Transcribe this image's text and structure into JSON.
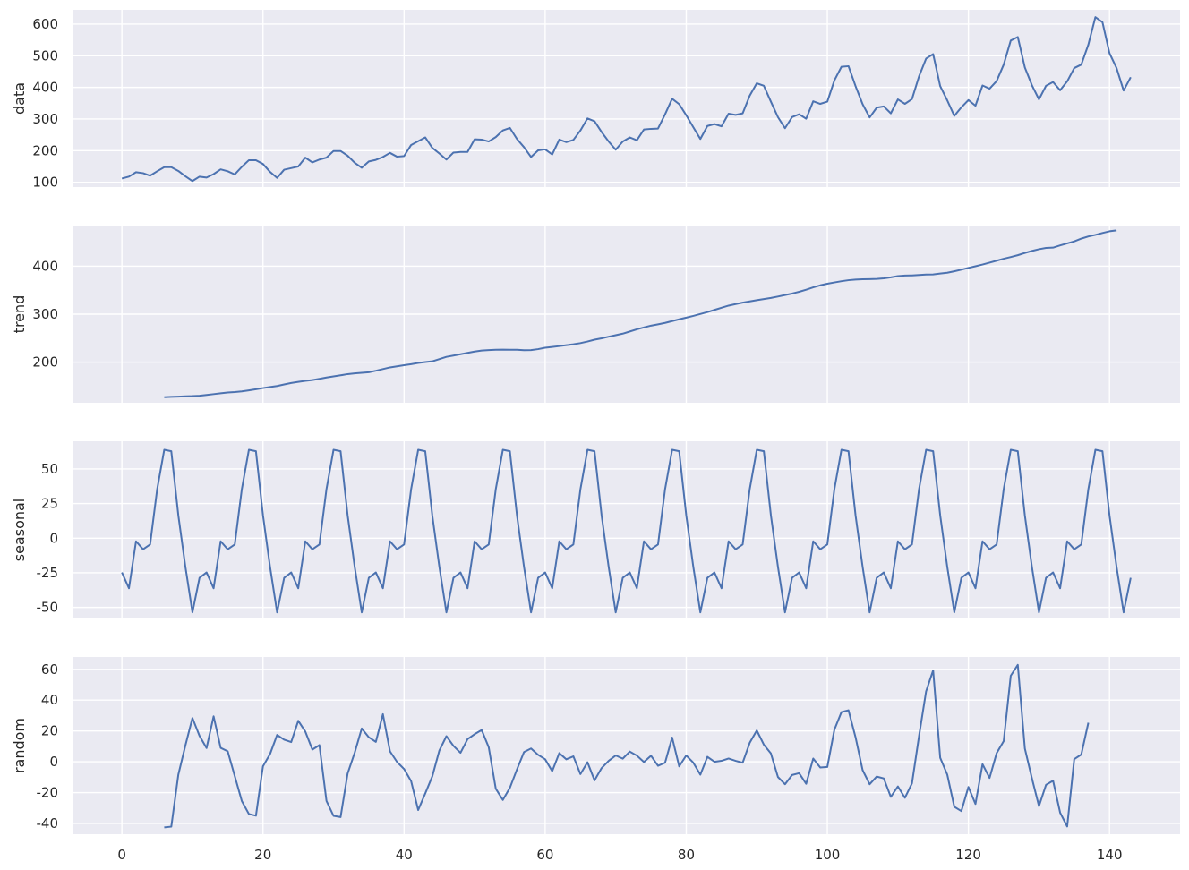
{
  "colors": {
    "panel_bg": "#EAEAF2",
    "grid": "#FFFFFF",
    "line": "#4C72B0",
    "text": "#262626"
  },
  "chart_data": [
    {
      "type": "line",
      "ylabel": "data",
      "ylim": [
        85,
        645
      ],
      "yticks": [
        100,
        200,
        300,
        400,
        500,
        600
      ],
      "xlim": [
        -7,
        150
      ],
      "xticks": [
        0,
        20,
        40,
        60,
        80,
        100,
        120,
        140
      ],
      "show_x_tick_labels": false,
      "x_start": 0,
      "values": [
        112,
        118,
        132,
        129,
        121,
        135,
        148,
        148,
        136,
        119,
        104,
        118,
        115,
        126,
        141,
        135,
        125,
        149,
        170,
        170,
        158,
        133,
        114,
        140,
        145,
        150,
        178,
        163,
        172,
        178,
        199,
        199,
        184,
        162,
        146,
        166,
        171,
        180,
        193,
        181,
        183,
        218,
        230,
        242,
        209,
        191,
        172,
        194,
        196,
        196,
        236,
        235,
        229,
        243,
        264,
        272,
        237,
        211,
        180,
        201,
        204,
        188,
        235,
        227,
        234,
        264,
        302,
        293,
        259,
        229,
        203,
        229,
        242,
        233,
        267,
        269,
        270,
        315,
        364,
        347,
        312,
        274,
        237,
        278,
        284,
        277,
        317,
        313,
        318,
        374,
        413,
        405,
        355,
        306,
        271,
        306,
        315,
        301,
        356,
        348,
        355,
        422,
        465,
        467,
        404,
        347,
        305,
        336,
        340,
        318,
        362,
        348,
        363,
        435,
        491,
        505,
        404,
        359,
        310,
        337,
        360,
        342,
        406,
        396,
        420,
        472,
        548,
        559,
        463,
        407,
        362,
        405,
        417,
        391,
        419,
        461,
        472,
        535,
        622,
        606,
        508,
        461,
        390,
        432
      ]
    },
    {
      "type": "line",
      "ylabel": "trend",
      "ylim": [
        115,
        485
      ],
      "yticks": [
        200,
        300,
        400
      ],
      "xlim": [
        -7,
        150
      ],
      "xticks": [
        0,
        20,
        40,
        60,
        80,
        100,
        120,
        140
      ],
      "show_x_tick_labels": false,
      "x_start": 6,
      "values": [
        126.8,
        127.3,
        127.9,
        128.6,
        129.0,
        129.8,
        131.3,
        133.1,
        134.9,
        136.4,
        137.4,
        138.8,
        140.9,
        143.2,
        145.7,
        148.0,
        150.0,
        153.3,
        156.3,
        158.6,
        160.8,
        162.5,
        165.0,
        167.8,
        170.2,
        172.4,
        174.9,
        176.4,
        177.7,
        178.8,
        181.9,
        185.4,
        188.9,
        191.2,
        193.4,
        195.6,
        198.1,
        200.0,
        201.6,
        206.3,
        210.9,
        213.6,
        216.3,
        219.2,
        221.9,
        224.0,
        225.0,
        225.6,
        226.0,
        225.6,
        225.6,
        224.8,
        225.1,
        227.0,
        230.0,
        231.5,
        233.3,
        235.3,
        237.1,
        239.6,
        242.9,
        246.7,
        249.5,
        252.9,
        256.1,
        259.3,
        263.8,
        268.4,
        272.3,
        276.0,
        278.8,
        281.8,
        285.5,
        289.3,
        292.8,
        296.4,
        300.3,
        304.3,
        308.9,
        313.4,
        317.8,
        321.0,
        324.0,
        326.6,
        329.2,
        331.6,
        333.9,
        336.8,
        339.9,
        343.0,
        346.7,
        351.1,
        355.9,
        360.2,
        363.5,
        366.2,
        368.8,
        370.9,
        372.2,
        372.9,
        373.1,
        373.6,
        374.7,
        376.8,
        379.4,
        380.6,
        380.9,
        381.8,
        382.7,
        383.0,
        384.7,
        386.5,
        389.5,
        392.9,
        396.6,
        400.0,
        403.6,
        407.6,
        411.7,
        415.7,
        419.3,
        423.1,
        427.8,
        432.0,
        435.6,
        438.3,
        438.9,
        443.5,
        447.7,
        452.0,
        457.7,
        462.2,
        465.5,
        469.5,
        473.0,
        475.0
      ]
    },
    {
      "type": "line",
      "ylabel": "seasonal",
      "ylim": [
        -58,
        70
      ],
      "yticks": [
        -50,
        -25,
        0,
        25,
        50
      ],
      "xlim": [
        -7,
        150
      ],
      "xticks": [
        0,
        20,
        40,
        60,
        80,
        100,
        120,
        140
      ],
      "show_x_tick_labels": false,
      "x_start": 0,
      "cycle": [
        -24.75,
        -36.19,
        -2.24,
        -8.04,
        -4.51,
        35.4,
        63.83,
        62.82,
        16.52,
        -20.64,
        -53.59,
        -28.62
      ],
      "repeats": 12
    },
    {
      "type": "line",
      "ylabel": "random",
      "ylim": [
        -47,
        68
      ],
      "yticks": [
        -40,
        -20,
        0,
        20,
        40,
        60
      ],
      "xlim": [
        -7,
        150
      ],
      "xticks": [
        0,
        20,
        40,
        60,
        80,
        100,
        120,
        140
      ],
      "x_tick_labels": [
        "0",
        "20",
        "40",
        "60",
        "80",
        "100",
        "120",
        "140"
      ],
      "show_x_tick_labels": true,
      "x_start": 6,
      "values": [
        -42.6,
        -42.1,
        -8.4,
        10.6,
        28.4,
        16.8,
        8.9,
        29.5,
        9.0,
        6.8,
        -9.3,
        -25.5,
        -33.9,
        -35.0,
        -2.9,
        5.0,
        17.4,
        14.3,
        12.8,
        26.6,
        19.6,
        7.9,
        10.8,
        -25.4,
        -35.1,
        -35.9,
        -7.6,
        5.9,
        21.6,
        15.9,
        12.9,
        30.9,
        6.8,
        -0.1,
        -4.7,
        -12.6,
        -31.3,
        -20.6,
        -9.5,
        7.3,
        16.6,
        10.3,
        5.8,
        14.7,
        17.9,
        20.6,
        9.4,
        -17.5,
        -24.8,
        -16.9,
        -5.0,
        6.3,
        8.6,
        4.5,
        1.6,
        -6.1,
        5.6,
        1.6,
        3.5,
        -8.0,
        -0.3,
        -12.1,
        -4.1,
        0.6,
        4.1,
        2.0,
        6.6,
        4.0,
        -0.2,
        3.9,
        -2.6,
        -0.6,
        15.7,
        -3.0,
        4.1,
        -0.6,
        -8.4,
        3.2,
        0.0,
        0.6,
        2.1,
        0.6,
        -0.6,
        12.3,
        20.3,
        11.1,
        5.4,
        -9.9,
        -14.6,
        -8.6,
        -7.4,
        -14.3,
        2.1,
        -3.7,
        -3.4,
        20.8,
        32.2,
        33.4,
        15.9,
        -5.4,
        -14.6,
        -9.6,
        -10.8,
        -22.8,
        -16.0,
        -23.4,
        -14.0,
        16.7,
        45.7,
        59.3,
        2.6,
        -8.3,
        -29.2,
        -32.0,
        -16.4,
        -27.4,
        -1.6,
        -10.5,
        5.6,
        13.4,
        55.8,
        62.9,
        8.6,
        -10.7,
        -28.8,
        -15.0,
        -12.3,
        -33.0,
        -42.0,
        1.7,
        4.7,
        25.3
      ]
    }
  ]
}
